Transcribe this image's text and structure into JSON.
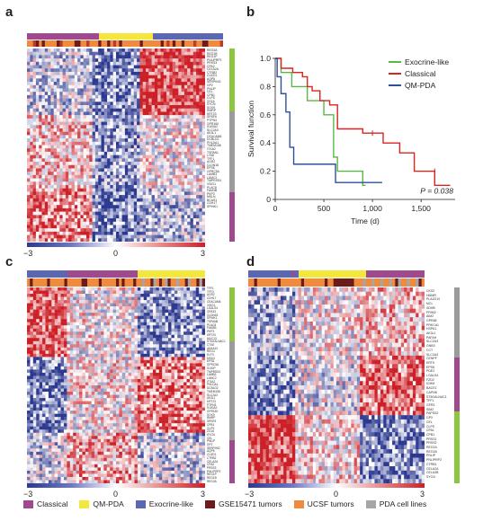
{
  "panels": {
    "a": "a",
    "b": "b",
    "c": "c",
    "d": "d"
  },
  "colors": {
    "classical": "#a0498e",
    "qm_pda": "#f3e73b",
    "exocrine": "#5b67b2",
    "gse15471": "#6b1b1b",
    "ucsf": "#f08a3c",
    "cell_lines": "#a6a6a6",
    "cluster_green": "#8dc63f",
    "cluster_gray": "#9b9b9b",
    "cluster_purple": "#a0498e",
    "heat_low": "#2b3990",
    "heat_high": "#cc1f26"
  },
  "scales": {
    "a": {
      "min": "−3",
      "mid": "0",
      "max": "3"
    },
    "c": {
      "min": "−3",
      "mid": "0",
      "max": "3"
    },
    "d": {
      "min": "−3",
      "mid": "0",
      "max": "3"
    }
  },
  "legend": [
    {
      "label": "Classical",
      "color": "#a0498e"
    },
    {
      "label": "QM-PDA",
      "color": "#f3e73b"
    },
    {
      "label": "Exocrine-like",
      "color": "#5b67b2"
    },
    {
      "label": "GSE15471 tumors",
      "color": "#6b1b1b"
    },
    {
      "label": "UCSF tumors",
      "color": "#f08a3c"
    },
    {
      "label": "PDA cell lines",
      "color": "#a6a6a6"
    }
  ],
  "genes_a": [
    "REG3A",
    "REG1B",
    "REG1P",
    "PNLIPRP2",
    "PRSS3",
    "CPA2",
    "CELA2A",
    "CTRB2",
    "CUZD1",
    "AQP8",
    "SERPINI2",
    "GP2",
    "PNLIP",
    "CEL",
    "CPB1",
    "CLPS",
    "ZG16",
    "SYCN",
    "SOX9",
    "RMRP",
    "KRT23",
    "SRSF6",
    "PTPN3",
    "GPR160",
    "S100A2",
    "SLC2A3",
    "AK3L1",
    "CEACAM6",
    "DCBLD2",
    "PHLDA1",
    "TMEM158",
    "ITGA2",
    "TSPAN1",
    "LY6D",
    "TFF1",
    "AGR2",
    "CLDN18",
    "EPS8",
    "GPRC5A",
    "LAMB3",
    "LAMC2",
    "TMPRSS4",
    "VSIG1",
    "PLAC8",
    "FAM3B",
    "PKP3",
    "MSLN",
    "BCAS1",
    "CDH17",
    "SPINK1"
  ],
  "genes_c": [
    "TFF1",
    "TFF3",
    "AGR2",
    "CDH17",
    "CEACAM6",
    "VSIG1",
    "LGALS4",
    "GPA33",
    "CLDN18",
    "SPINK1",
    "TSPAN8",
    "PLAC8",
    "FAM3B",
    "PKP3",
    "KRT20",
    "MUC13",
    "ST6GALNAC1",
    "CTSE",
    "ANXA10",
    "REG4",
    "ELF3",
    "MSLN",
    "EPS8",
    "GPRC5A",
    "S100P",
    "TMPRSS4",
    "LAMB3",
    "LAMC2",
    "ITGA2",
    "PHLDA1",
    "DCBLD2",
    "TMEM158",
    "SLC2A3",
    "AK3L1",
    "KRT23",
    "PTPN3",
    "S100A2",
    "GPR160",
    "SOX9",
    "RMRP",
    "SRSF6",
    "CPB1",
    "CLPS",
    "ZG16",
    "SYCN",
    "CEL",
    "PNLIP",
    "GP2",
    "SERPINI2",
    "AQP8",
    "CUZD1",
    "CTRB2",
    "CELA2A",
    "CPA2",
    "PRSS3",
    "PNLIPRP2",
    "REG1P",
    "REG1B",
    "REG3A"
  ],
  "genes_d": [
    "CKS2",
    "HMMR",
    "PLA2G10",
    "MCL",
    "SDHB",
    "PRIM2",
    "AIM2",
    "GPR68",
    "PRKCA1",
    "HSPA1",
    "AK3L1",
    "PAFAH",
    "SLC2A3",
    "GNB3",
    "CCT",
    "SLC2A3",
    "CENPF",
    "KRT5",
    "EPS8",
    "PDE2",
    "LGALS4",
    "FZD2",
    "IGHM",
    "BACE1",
    "CAPN8",
    "ST6GALNAC1",
    "TFF1",
    "GFR3",
    "SIM2",
    "PAPSS2",
    "GPX",
    "CEL",
    "CLPS",
    "CPA1",
    "CPB1",
    "PRSS1",
    "PRSS2",
    "REG1A",
    "REG1B",
    "PNLIP",
    "PNLIPRP2",
    "CTRB1",
    "CELA2A",
    "CELA3B",
    "SYCN"
  ],
  "chart_data": {
    "type": "line",
    "title": "",
    "xlabel": "Time (d)",
    "ylabel": "Survival function",
    "xlim": [
      0,
      1850
    ],
    "ylim": [
      0,
      1.0
    ],
    "x_ticks": [
      "0",
      "500",
      "1,000",
      "1,500"
    ],
    "y_ticks": [
      "0",
      "0.2",
      "0.4",
      "0.6",
      "0.8",
      "1.0"
    ],
    "annotation": "P = 0.038",
    "legend_position": "top-right",
    "series": [
      {
        "name": "Exocrine-like",
        "color": "#5bb848",
        "x": [
          0,
          60,
          60,
          170,
          170,
          330,
          330,
          500,
          500,
          600,
          600,
          640,
          640,
          900,
          900,
          930
        ],
        "y": [
          1.0,
          1.0,
          0.9,
          0.9,
          0.8,
          0.8,
          0.7,
          0.7,
          0.6,
          0.6,
          0.3,
          0.3,
          0.2,
          0.2,
          0.1,
          0.1
        ]
      },
      {
        "name": "Classical",
        "color": "#d7261e",
        "x": [
          0,
          60,
          60,
          180,
          180,
          280,
          280,
          330,
          330,
          380,
          380,
          460,
          460,
          560,
          560,
          640,
          640,
          900,
          900,
          1110,
          1110,
          1280,
          1280,
          1430,
          1430,
          1640,
          1640,
          1800
        ],
        "y": [
          1.0,
          1.0,
          0.93,
          0.93,
          0.9,
          0.9,
          0.87,
          0.87,
          0.8,
          0.8,
          0.77,
          0.77,
          0.7,
          0.7,
          0.67,
          0.67,
          0.5,
          0.5,
          0.47,
          0.47,
          0.4,
          0.4,
          0.33,
          0.33,
          0.2,
          0.2,
          0.1,
          0.1
        ]
      },
      {
        "name": "QM-PDA",
        "color": "#2e4f9d",
        "x": [
          0,
          20,
          20,
          60,
          60,
          110,
          110,
          150,
          150,
          190,
          190,
          620,
          620,
          1100
        ],
        "y": [
          1.0,
          1.0,
          0.87,
          0.87,
          0.75,
          0.75,
          0.62,
          0.62,
          0.37,
          0.37,
          0.25,
          0.25,
          0.12,
          0.12
        ]
      }
    ]
  }
}
